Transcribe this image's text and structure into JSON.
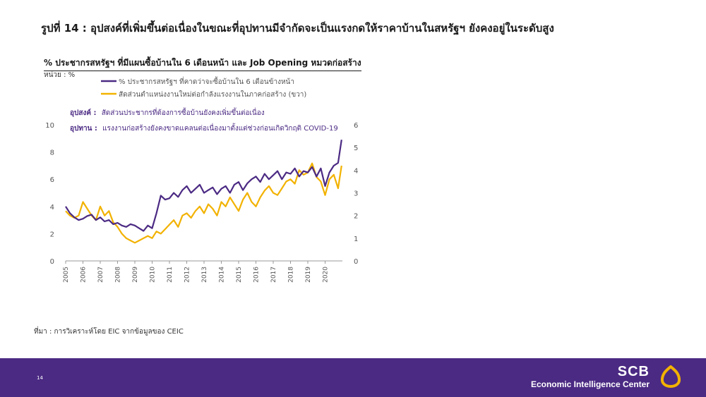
{
  "slide_title": "รูปที่ 14 : อุปสงค์ที่เพิ่มขึ้นต่อเนื่องในขณะที่อุปทานมีจำกัดจะเป็นแรงกดให้ราคาบ้านในสหรัฐฯ ยังคงอยู่ในระดับสูง",
  "source": "ที่มา : การวิเคราะห์โดย EIC จากข้อมูลของ CEIC",
  "page_number": "14",
  "brand": {
    "name": "SCB",
    "subtitle": "Economic Intelligence Center"
  },
  "colors": {
    "purple": "#4b2a83",
    "gold": "#f2b200",
    "footer": "#4b2a83"
  },
  "chart_data": {
    "type": "line",
    "title": "% ประชากรสหรัฐฯ ที่มีแผนซื้อบ้านใน 6 เดือนหน้า และ Job Opening หมวดก่อสร้าง",
    "unit_label": "หน่วย : %",
    "x_ticks": [
      "2005",
      "2006",
      "2007",
      "2008",
      "2009",
      "2010",
      "2011",
      "2012",
      "2013",
      "2014",
      "2015",
      "2016",
      "2017",
      "2018",
      "2019",
      "2020"
    ],
    "y_left": {
      "lim": [
        0,
        10
      ],
      "ticks": [
        "0",
        "2",
        "4",
        "6",
        "8",
        "10"
      ]
    },
    "y_right": {
      "lim": [
        0,
        6
      ],
      "ticks": [
        "0",
        "1",
        "2",
        "3",
        "4",
        "5",
        "6"
      ]
    },
    "legend_position": "top",
    "annotations": [
      {
        "label": "อุปสงค์ :",
        "text": "สัดส่วนประชากรที่ต้องการซื้อบ้านยังคงเพิ่มขึ้นต่อเนื่อง"
      },
      {
        "label": "อุปทาน :",
        "text": "แรงงานก่อสร้างยังคงขาดแคลนต่อเนื่องมาตั้งแต่ช่วงก่อนเกิดวิกฤติ COVID-19"
      }
    ],
    "series": [
      {
        "name": "% ประชากรสหรัฐฯ ที่คาดว่าจะซื้อบ้านใน 6 เดือนข้างหน้า",
        "axis": "left",
        "color": "#4b2a83",
        "x": [
          2005.0,
          2005.25,
          2005.5,
          2005.75,
          2006.0,
          2006.25,
          2006.5,
          2006.75,
          2007.0,
          2007.25,
          2007.5,
          2007.75,
          2008.0,
          2008.25,
          2008.5,
          2008.75,
          2009.0,
          2009.25,
          2009.5,
          2009.75,
          2010.0,
          2010.25,
          2010.5,
          2010.75,
          2011.0,
          2011.25,
          2011.5,
          2011.75,
          2012.0,
          2012.25,
          2012.5,
          2012.75,
          2013.0,
          2013.25,
          2013.5,
          2013.75,
          2014.0,
          2014.25,
          2014.5,
          2014.75,
          2015.0,
          2015.25,
          2015.5,
          2015.75,
          2016.0,
          2016.25,
          2016.5,
          2016.75,
          2017.0,
          2017.25,
          2017.5,
          2017.75,
          2018.0,
          2018.25,
          2018.5,
          2018.75,
          2019.0,
          2019.25,
          2019.5,
          2019.75,
          2020.0,
          2020.25,
          2020.5,
          2020.75,
          2020.95
        ],
        "values": [
          4.0,
          3.5,
          3.2,
          3.0,
          3.1,
          3.3,
          3.4,
          3.0,
          3.2,
          2.9,
          3.0,
          2.7,
          2.8,
          2.6,
          2.5,
          2.7,
          2.6,
          2.4,
          2.2,
          2.6,
          2.4,
          3.5,
          4.8,
          4.5,
          4.6,
          5.0,
          4.7,
          5.2,
          5.5,
          5.0,
          5.3,
          5.6,
          5.0,
          5.2,
          5.4,
          4.9,
          5.3,
          5.5,
          5.0,
          5.6,
          5.8,
          5.2,
          5.7,
          6.0,
          6.2,
          5.8,
          6.4,
          6.0,
          6.3,
          6.6,
          6.0,
          6.5,
          6.4,
          6.8,
          6.2,
          6.6,
          6.5,
          6.9,
          6.2,
          6.8,
          5.5,
          6.5,
          7.0,
          7.2,
          8.9
        ]
      },
      {
        "name": "สัดส่วนตำแหน่งงานใหม่ต่อกำลังแรงงานในภาคก่อสร้าง (ขวา)",
        "axis": "right",
        "color": "#f2b200",
        "x": [
          2005.0,
          2005.25,
          2005.5,
          2005.75,
          2006.0,
          2006.25,
          2006.5,
          2006.75,
          2007.0,
          2007.25,
          2007.5,
          2007.75,
          2008.0,
          2008.25,
          2008.5,
          2008.75,
          2009.0,
          2009.25,
          2009.5,
          2009.75,
          2010.0,
          2010.25,
          2010.5,
          2010.75,
          2011.0,
          2011.25,
          2011.5,
          2011.75,
          2012.0,
          2012.25,
          2012.5,
          2012.75,
          2013.0,
          2013.25,
          2013.5,
          2013.75,
          2014.0,
          2014.25,
          2014.5,
          2014.75,
          2015.0,
          2015.25,
          2015.5,
          2015.75,
          2016.0,
          2016.25,
          2016.5,
          2016.75,
          2017.0,
          2017.25,
          2017.5,
          2017.75,
          2018.0,
          2018.25,
          2018.5,
          2018.75,
          2019.0,
          2019.25,
          2019.5,
          2019.75,
          2020.0,
          2020.25,
          2020.5,
          2020.75,
          2020.95
        ],
        "values": [
          2.2,
          2.0,
          1.9,
          2.0,
          2.6,
          2.3,
          2.0,
          1.8,
          2.4,
          2.0,
          2.2,
          1.7,
          1.5,
          1.2,
          1.0,
          0.9,
          0.8,
          0.9,
          1.0,
          1.1,
          1.0,
          1.3,
          1.2,
          1.4,
          1.6,
          1.8,
          1.5,
          2.0,
          2.1,
          1.9,
          2.2,
          2.4,
          2.1,
          2.5,
          2.3,
          2.0,
          2.6,
          2.4,
          2.8,
          2.5,
          2.2,
          2.7,
          3.0,
          2.6,
          2.4,
          2.8,
          3.1,
          3.3,
          3.0,
          2.9,
          3.2,
          3.5,
          3.6,
          3.4,
          4.0,
          3.8,
          3.9,
          4.3,
          3.7,
          3.5,
          2.9,
          3.6,
          3.8,
          3.2,
          4.2
        ]
      }
    ]
  }
}
